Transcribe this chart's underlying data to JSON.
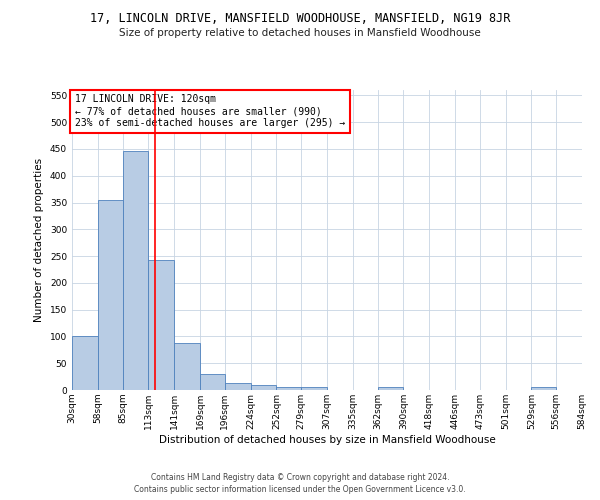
{
  "title": "17, LINCOLN DRIVE, MANSFIELD WOODHOUSE, MANSFIELD, NG19 8JR",
  "subtitle": "Size of property relative to detached houses in Mansfield Woodhouse",
  "xlabel": "Distribution of detached houses by size in Mansfield Woodhouse",
  "ylabel": "Number of detached properties",
  "footer_line1": "Contains HM Land Registry data © Crown copyright and database right 2024.",
  "footer_line2": "Contains public sector information licensed under the Open Government Licence v3.0.",
  "annotation_line1": "17 LINCOLN DRIVE: 120sqm",
  "annotation_line2": "← 77% of detached houses are smaller (990)",
  "annotation_line3": "23% of semi-detached houses are larger (295) →",
  "property_size": 120,
  "bar_color": "#b8cce4",
  "bar_edge_color": "#4f81bd",
  "red_line_color": "#ff0000",
  "annotation_box_color": "#ffffff",
  "annotation_box_edge_color": "#ff0000",
  "grid_color": "#c8d4e3",
  "background_color": "#ffffff",
  "bins": [
    30,
    58,
    85,
    113,
    141,
    169,
    196,
    224,
    252,
    279,
    307,
    335,
    362,
    390,
    418,
    446,
    473,
    501,
    529,
    556,
    584
  ],
  "bin_labels": [
    "30sqm",
    "58sqm",
    "85sqm",
    "113sqm",
    "141sqm",
    "169sqm",
    "196sqm",
    "224sqm",
    "252sqm",
    "279sqm",
    "307sqm",
    "335sqm",
    "362sqm",
    "390sqm",
    "418sqm",
    "446sqm",
    "473sqm",
    "501sqm",
    "529sqm",
    "556sqm",
    "584sqm"
  ],
  "values": [
    100,
    355,
    447,
    243,
    87,
    30,
    13,
    9,
    5,
    5,
    0,
    0,
    5,
    0,
    0,
    0,
    0,
    0,
    5,
    0
  ],
  "ylim": [
    0,
    560
  ],
  "yticks": [
    0,
    50,
    100,
    150,
    200,
    250,
    300,
    350,
    400,
    450,
    500,
    550
  ],
  "title_fontsize": 8.5,
  "subtitle_fontsize": 7.5,
  "ylabel_fontsize": 7.5,
  "xlabel_fontsize": 7.5,
  "tick_fontsize": 6.5,
  "annotation_fontsize": 7,
  "footer_fontsize": 5.5
}
